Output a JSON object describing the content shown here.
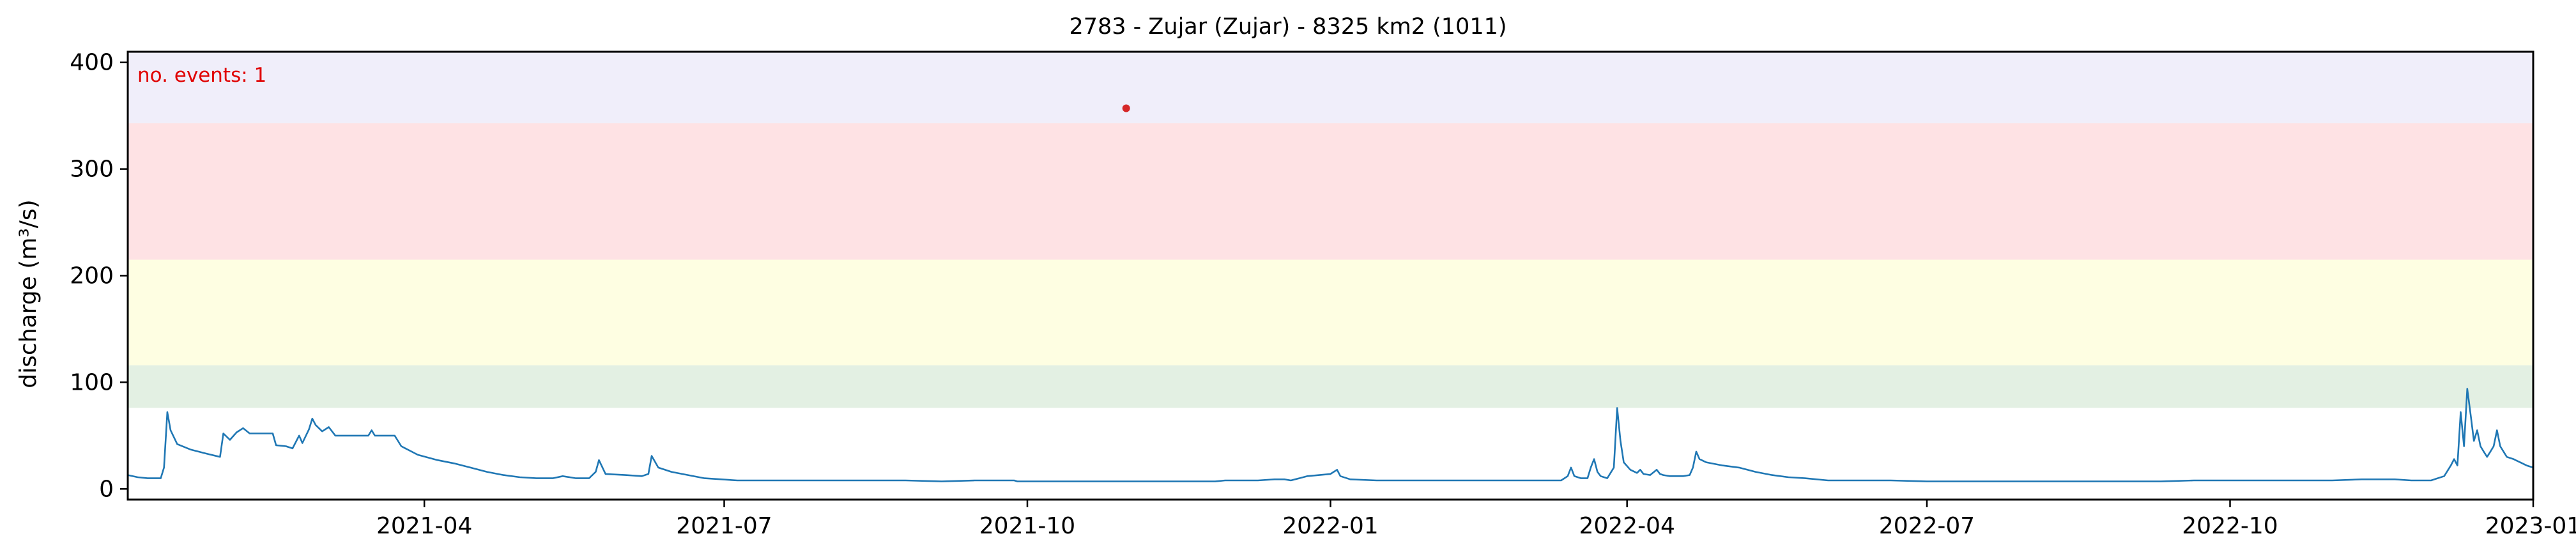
{
  "chart_data": {
    "type": "line",
    "title": "2783 - Zujar (Zujar) - 8325 km2 (1011)",
    "xlabel": "",
    "ylabel": "discharge (m³/s)",
    "annotation": "no. events: 1",
    "xlim": [
      "2021-01-01",
      "2023-01-01"
    ],
    "ylim": [
      -10,
      410
    ],
    "x_ticks": [
      "2021-04",
      "2021-07",
      "2021-10",
      "2022-01",
      "2022-04",
      "2022-07",
      "2022-10",
      "2023-01"
    ],
    "y_ticks": [
      0,
      100,
      200,
      300,
      400
    ],
    "grid": false,
    "bands": [
      {
        "from": 76,
        "to": 116,
        "color": "#e3f0e3"
      },
      {
        "from": 116,
        "to": 215,
        "color": "#fefee2"
      },
      {
        "from": 215,
        "to": 343,
        "color": "#fee2e4"
      },
      {
        "from": 343,
        "to": 410,
        "color": "#f0eefa"
      }
    ],
    "series": [
      {
        "color": "#1f77b4",
        "points": [
          [
            "2021-01-01",
            13
          ],
          [
            "2021-01-04",
            11
          ],
          [
            "2021-01-07",
            10
          ],
          [
            "2021-01-11",
            10
          ],
          [
            "2021-01-12",
            20
          ],
          [
            "2021-01-13",
            72
          ],
          [
            "2021-01-14",
            55
          ],
          [
            "2021-01-16",
            42
          ],
          [
            "2021-01-20",
            37
          ],
          [
            "2021-01-25",
            33
          ],
          [
            "2021-01-29",
            30
          ],
          [
            "2021-01-30",
            52
          ],
          [
            "2021-02-01",
            46
          ],
          [
            "2021-02-03",
            53
          ],
          [
            "2021-02-05",
            57
          ],
          [
            "2021-02-07",
            52
          ],
          [
            "2021-02-10",
            52
          ],
          [
            "2021-02-14",
            52
          ],
          [
            "2021-02-15",
            41
          ],
          [
            "2021-02-18",
            40
          ],
          [
            "2021-02-20",
            38
          ],
          [
            "2021-02-22",
            50
          ],
          [
            "2021-02-23",
            43
          ],
          [
            "2021-02-25",
            56
          ],
          [
            "2021-02-26",
            66
          ],
          [
            "2021-02-27",
            60
          ],
          [
            "2021-03-01",
            54
          ],
          [
            "2021-03-03",
            58
          ],
          [
            "2021-03-05",
            50
          ],
          [
            "2021-03-08",
            50
          ],
          [
            "2021-03-12",
            50
          ],
          [
            "2021-03-15",
            50
          ],
          [
            "2021-03-16",
            55
          ],
          [
            "2021-03-17",
            50
          ],
          [
            "2021-03-20",
            50
          ],
          [
            "2021-03-23",
            50
          ],
          [
            "2021-03-25",
            40
          ],
          [
            "2021-03-30",
            32
          ],
          [
            "2021-04-05",
            27
          ],
          [
            "2021-04-10",
            24
          ],
          [
            "2021-04-15",
            20
          ],
          [
            "2021-04-20",
            16
          ],
          [
            "2021-04-25",
            13
          ],
          [
            "2021-04-30",
            11
          ],
          [
            "2021-05-05",
            10
          ],
          [
            "2021-05-10",
            10
          ],
          [
            "2021-05-13",
            12
          ],
          [
            "2021-05-17",
            10
          ],
          [
            "2021-05-21",
            10
          ],
          [
            "2021-05-23",
            16
          ],
          [
            "2021-05-24",
            27
          ],
          [
            "2021-05-26",
            14
          ],
          [
            "2021-06-01",
            13
          ],
          [
            "2021-06-06",
            12
          ],
          [
            "2021-06-08",
            14
          ],
          [
            "2021-06-09",
            31
          ],
          [
            "2021-06-11",
            20
          ],
          [
            "2021-06-15",
            16
          ],
          [
            "2021-06-25",
            10
          ],
          [
            "2021-07-05",
            8
          ],
          [
            "2021-07-15",
            8
          ],
          [
            "2021-07-25",
            8
          ],
          [
            "2021-08-05",
            8
          ],
          [
            "2021-08-10",
            8
          ],
          [
            "2021-08-15",
            8
          ],
          [
            "2021-08-20",
            8
          ],
          [
            "2021-08-25",
            8
          ],
          [
            "2021-09-05",
            7
          ],
          [
            "2021-09-15",
            8
          ],
          [
            "2021-09-20",
            8
          ],
          [
            "2021-09-27",
            8
          ],
          [
            "2021-09-28",
            7
          ],
          [
            "2021-10-01",
            7
          ],
          [
            "2021-10-10",
            7
          ],
          [
            "2021-10-20",
            7
          ],
          [
            "2021-11-01",
            7
          ],
          [
            "2021-11-08",
            7
          ],
          [
            "2021-11-15",
            7
          ],
          [
            "2021-11-22",
            7
          ],
          [
            "2021-11-27",
            7
          ],
          [
            "2021-11-30",
            8
          ],
          [
            "2021-12-05",
            8
          ],
          [
            "2021-12-10",
            8
          ],
          [
            "2021-12-15",
            9
          ],
          [
            "2021-12-18",
            9
          ],
          [
            "2021-12-20",
            8
          ],
          [
            "2021-12-25",
            12
          ],
          [
            "2022-01-01",
            14
          ],
          [
            "2022-01-03",
            18
          ],
          [
            "2022-01-04",
            12
          ],
          [
            "2022-01-07",
            9
          ],
          [
            "2022-01-15",
            8
          ],
          [
            "2022-01-25",
            8
          ],
          [
            "2022-02-05",
            8
          ],
          [
            "2022-02-15",
            8
          ],
          [
            "2022-02-25",
            8
          ],
          [
            "2022-03-05",
            8
          ],
          [
            "2022-03-08",
            8
          ],
          [
            "2022-03-12",
            8
          ],
          [
            "2022-03-14",
            12
          ],
          [
            "2022-03-15",
            20
          ],
          [
            "2022-03-16",
            12
          ],
          [
            "2022-03-18",
            10
          ],
          [
            "2022-03-20",
            10
          ],
          [
            "2022-03-21",
            20
          ],
          [
            "2022-03-22",
            28
          ],
          [
            "2022-03-23",
            16
          ],
          [
            "2022-03-24",
            12
          ],
          [
            "2022-03-25",
            11
          ],
          [
            "2022-03-26",
            10
          ],
          [
            "2022-03-28",
            20
          ],
          [
            "2022-03-29",
            76
          ],
          [
            "2022-03-30",
            45
          ],
          [
            "2022-03-31",
            25
          ],
          [
            "2022-04-02",
            18
          ],
          [
            "2022-04-04",
            15
          ],
          [
            "2022-04-05",
            18
          ],
          [
            "2022-04-06",
            14
          ],
          [
            "2022-04-08",
            13
          ],
          [
            "2022-04-10",
            18
          ],
          [
            "2022-04-11",
            14
          ],
          [
            "2022-04-12",
            13
          ],
          [
            "2022-04-14",
            12
          ],
          [
            "2022-04-16",
            12
          ],
          [
            "2022-04-18",
            12
          ],
          [
            "2022-04-20",
            13
          ],
          [
            "2022-04-21",
            20
          ],
          [
            "2022-04-22",
            35
          ],
          [
            "2022-04-23",
            28
          ],
          [
            "2022-04-25",
            25
          ],
          [
            "2022-04-30",
            22
          ],
          [
            "2022-05-05",
            20
          ],
          [
            "2022-05-10",
            16
          ],
          [
            "2022-05-15",
            13
          ],
          [
            "2022-05-20",
            11
          ],
          [
            "2022-05-25",
            10
          ],
          [
            "2022-06-01",
            8
          ],
          [
            "2022-06-10",
            8
          ],
          [
            "2022-06-20",
            8
          ],
          [
            "2022-07-01",
            7
          ],
          [
            "2022-07-10",
            7
          ],
          [
            "2022-07-20",
            7
          ],
          [
            "2022-08-01",
            7
          ],
          [
            "2022-08-10",
            7
          ],
          [
            "2022-08-20",
            7
          ],
          [
            "2022-09-01",
            7
          ],
          [
            "2022-09-10",
            7
          ],
          [
            "2022-09-20",
            8
          ],
          [
            "2022-10-01",
            8
          ],
          [
            "2022-10-10",
            8
          ],
          [
            "2022-10-20",
            8
          ],
          [
            "2022-11-01",
            8
          ],
          [
            "2022-11-10",
            9
          ],
          [
            "2022-11-20",
            9
          ],
          [
            "2022-11-25",
            8
          ],
          [
            "2022-12-01",
            8
          ],
          [
            "2022-12-05",
            12
          ],
          [
            "2022-12-07",
            22
          ],
          [
            "2022-12-08",
            28
          ],
          [
            "2022-12-09",
            22
          ],
          [
            "2022-12-10",
            72
          ],
          [
            "2022-12-11",
            40
          ],
          [
            "2022-12-12",
            94
          ],
          [
            "2022-12-13",
            70
          ],
          [
            "2022-12-14",
            45
          ],
          [
            "2022-12-15",
            55
          ],
          [
            "2022-12-16",
            40
          ],
          [
            "2022-12-17",
            35
          ],
          [
            "2022-12-18",
            30
          ],
          [
            "2022-12-19",
            35
          ],
          [
            "2022-12-20",
            40
          ],
          [
            "2022-12-21",
            55
          ],
          [
            "2022-12-22",
            40
          ],
          [
            "2022-12-23",
            35
          ],
          [
            "2022-12-24",
            30
          ],
          [
            "2022-12-26",
            28
          ],
          [
            "2022-12-28",
            25
          ],
          [
            "2022-12-30",
            22
          ],
          [
            "2023-01-01",
            20
          ]
        ]
      }
    ],
    "events": [
      {
        "x": "2021-10-31",
        "y": 357,
        "color": "#d62728"
      }
    ]
  }
}
